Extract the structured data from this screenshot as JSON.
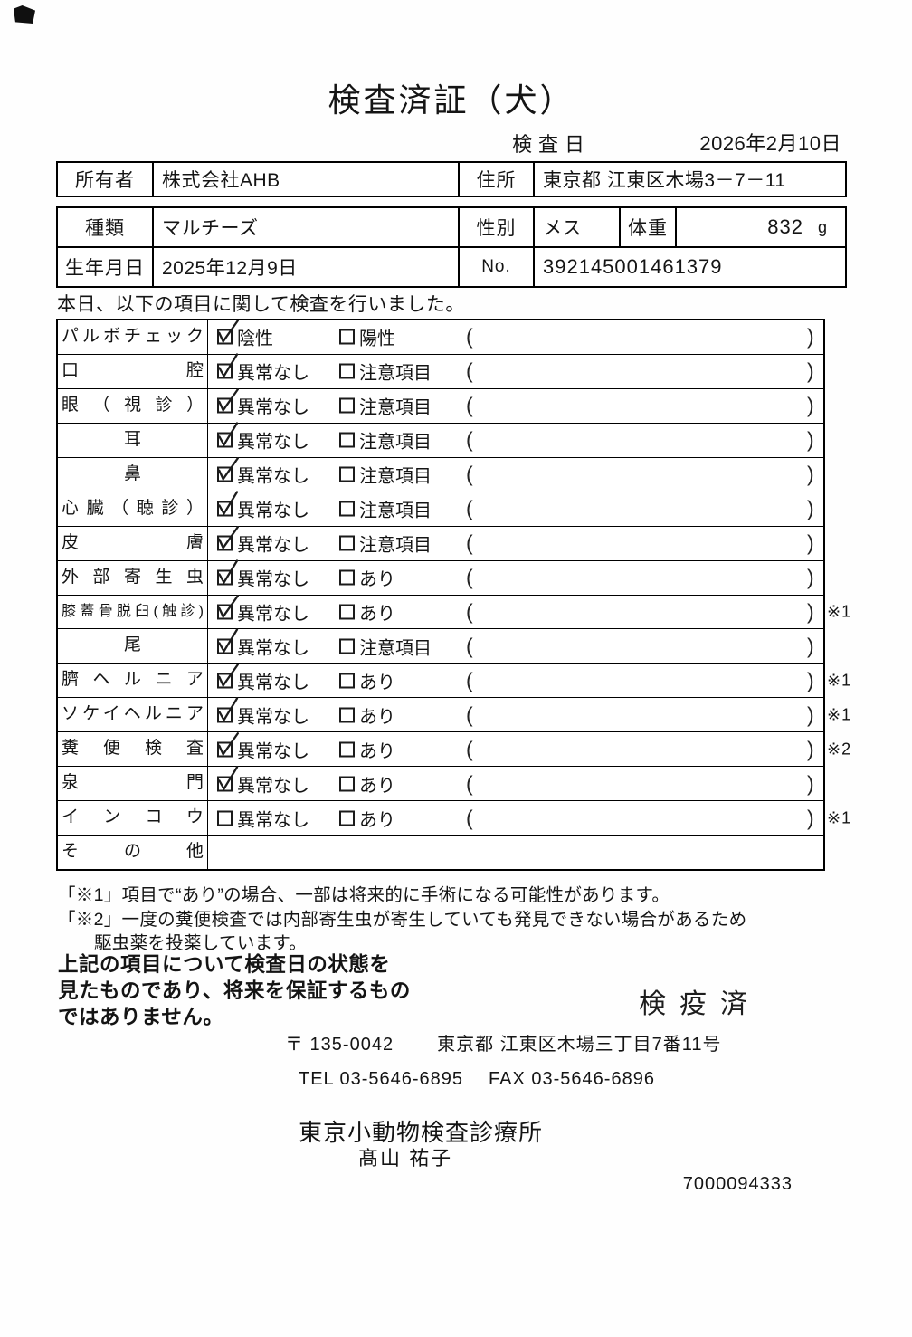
{
  "title": "検査済証（犬）",
  "exam_date": {
    "label": "検査日",
    "value": "2026年2月10日"
  },
  "owner": {
    "label": "所有者",
    "value": "株式会社AHB",
    "address_label": "住所",
    "address": "東京都 江東区木場3－7－11"
  },
  "pet": {
    "breed_label": "種類",
    "breed": "マルチーズ",
    "sex_label": "性別",
    "sex": "メス",
    "weight_label": "体重",
    "weight": "832",
    "weight_unit": "g",
    "birth_label": "生年月日",
    "birth": "2025年12月9日",
    "no_label": "No.",
    "no_value": "392145001461379"
  },
  "intro": "本日、以下の項目に関して検査を行いました。",
  "inspection": {
    "paren_open": "(",
    "paren_close": ")",
    "rows": [
      {
        "label": "パルボチェック",
        "option1": {
          "text": "陰性",
          "checked": true
        },
        "option2": {
          "text": "陽性",
          "checked": false
        },
        "note": ""
      },
      {
        "label": "口腔",
        "option1": {
          "text": "異常なし",
          "checked": true
        },
        "option2": {
          "text": "注意項目",
          "checked": false
        },
        "note": ""
      },
      {
        "label": "眼（視診）",
        "option1": {
          "text": "異常なし",
          "checked": true
        },
        "option2": {
          "text": "注意項目",
          "checked": false
        },
        "note": ""
      },
      {
        "label": "耳",
        "option1": {
          "text": "異常なし",
          "checked": true
        },
        "option2": {
          "text": "注意項目",
          "checked": false
        },
        "note": ""
      },
      {
        "label": "鼻",
        "option1": {
          "text": "異常なし",
          "checked": true
        },
        "option2": {
          "text": "注意項目",
          "checked": false
        },
        "note": ""
      },
      {
        "label": "心臓（聴診）",
        "option1": {
          "text": "異常なし",
          "checked": true
        },
        "option2": {
          "text": "注意項目",
          "checked": false
        },
        "note": ""
      },
      {
        "label": "皮膚",
        "option1": {
          "text": "異常なし",
          "checked": true
        },
        "option2": {
          "text": "注意項目",
          "checked": false
        },
        "note": ""
      },
      {
        "label": "外部寄生虫",
        "option1": {
          "text": "異常なし",
          "checked": true
        },
        "option2": {
          "text": "あり",
          "checked": false
        },
        "note": ""
      },
      {
        "label": "膝蓋骨脱臼(触診)",
        "option1": {
          "text": "異常なし",
          "checked": true
        },
        "option2": {
          "text": "あり",
          "checked": false
        },
        "note": "※1"
      },
      {
        "label": "尾",
        "option1": {
          "text": "異常なし",
          "checked": true
        },
        "option2": {
          "text": "注意項目",
          "checked": false
        },
        "note": ""
      },
      {
        "label": "臍ヘルニア",
        "option1": {
          "text": "異常なし",
          "checked": true
        },
        "option2": {
          "text": "あり",
          "checked": false
        },
        "note": "※1"
      },
      {
        "label": "ソケイヘルニア",
        "option1": {
          "text": "異常なし",
          "checked": true
        },
        "option2": {
          "text": "あり",
          "checked": false
        },
        "note": "※1"
      },
      {
        "label": "糞便検査",
        "option1": {
          "text": "異常なし",
          "checked": true
        },
        "option2": {
          "text": "あり",
          "checked": false
        },
        "note": "※2"
      },
      {
        "label": "泉門",
        "option1": {
          "text": "異常なし",
          "checked": true
        },
        "option2": {
          "text": "あり",
          "checked": false
        },
        "note": ""
      },
      {
        "label": "インコウ",
        "option1": {
          "text": "異常なし",
          "checked": false
        },
        "option2": {
          "text": "あり",
          "checked": false
        },
        "note": "※1"
      },
      {
        "label": "その他",
        "empty": true,
        "note": ""
      }
    ]
  },
  "notes": {
    "note1": "「※1」項目で“あり”の場合、一部は将来的に手術になる可能性があります。",
    "note2_line1": "「※2」一度の糞便検査では内部寄生虫が寄生していても発見できない場合があるため",
    "note2_line2": "駆虫薬を投薬しています。"
  },
  "disclaimer": {
    "line1": "上記の項目について検査日の状態を",
    "line2": "見たものであり、将来を保証するもの",
    "line3": "ではありません。"
  },
  "stamp": "検疫済",
  "clinic": {
    "postal": "〒 135-0042",
    "address": "東京都 江東区木場三丁目7番11号",
    "tel": "TEL 03-5646-6895",
    "fax": "FAX 03-5646-6896",
    "name": "東京小動物検査診療所",
    "veterinarian": "髙山 祐子",
    "code": "7000094333"
  }
}
